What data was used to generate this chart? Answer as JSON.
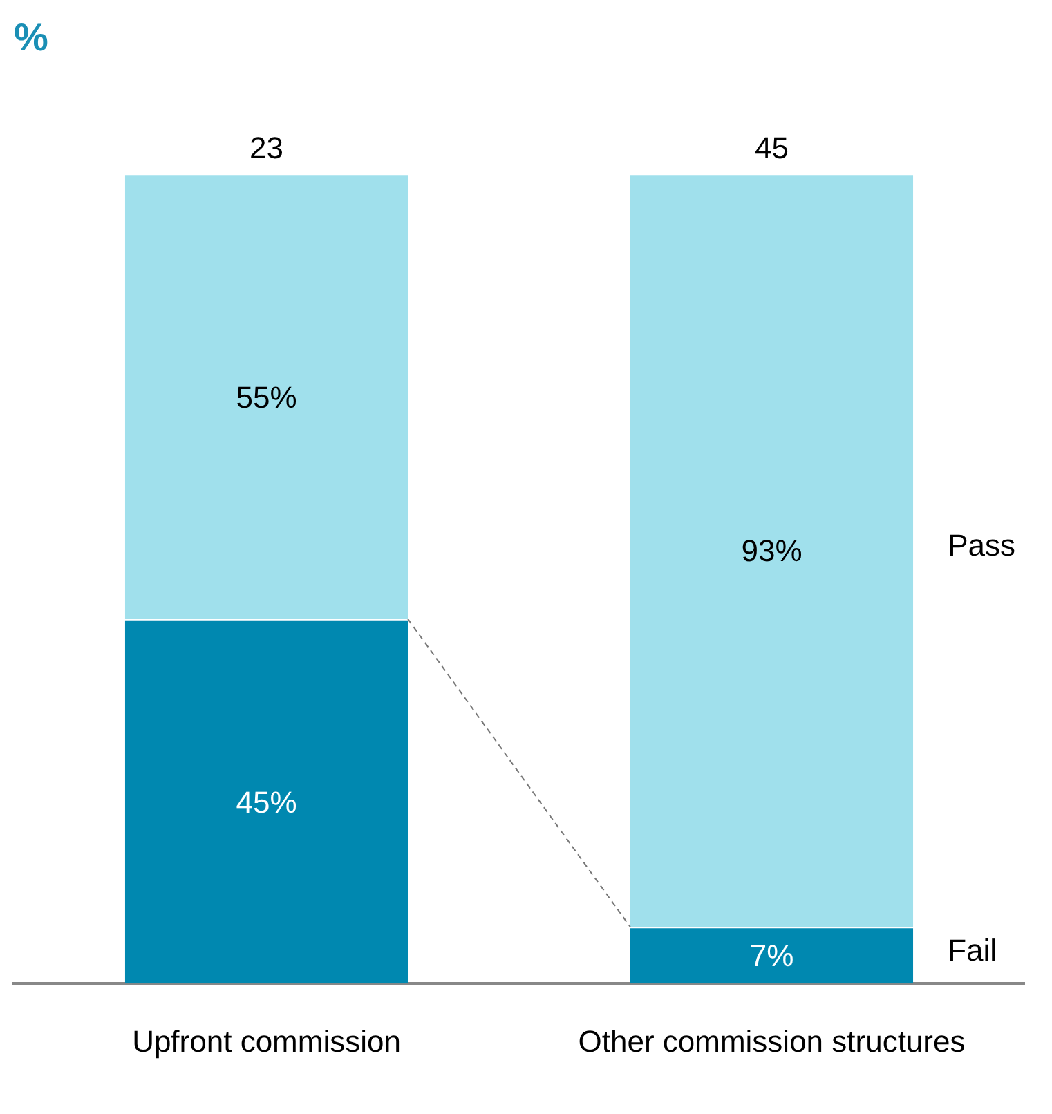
{
  "chart_data": {
    "type": "bar",
    "title": "%",
    "stacked": true,
    "categories": [
      "Upfront commission",
      "Other commission structures"
    ],
    "series": [
      {
        "name": "Fail",
        "color": "#0088b0",
        "values": [
          45,
          7
        ],
        "value_labels": [
          "45%",
          "7%"
        ]
      },
      {
        "name": "Pass",
        "color": "#a0e0ec",
        "values": [
          55,
          93
        ],
        "value_labels": [
          "55%",
          "93%"
        ]
      }
    ],
    "annotations": [
      "23",
      "45"
    ],
    "legend": false,
    "grid": false
  }
}
